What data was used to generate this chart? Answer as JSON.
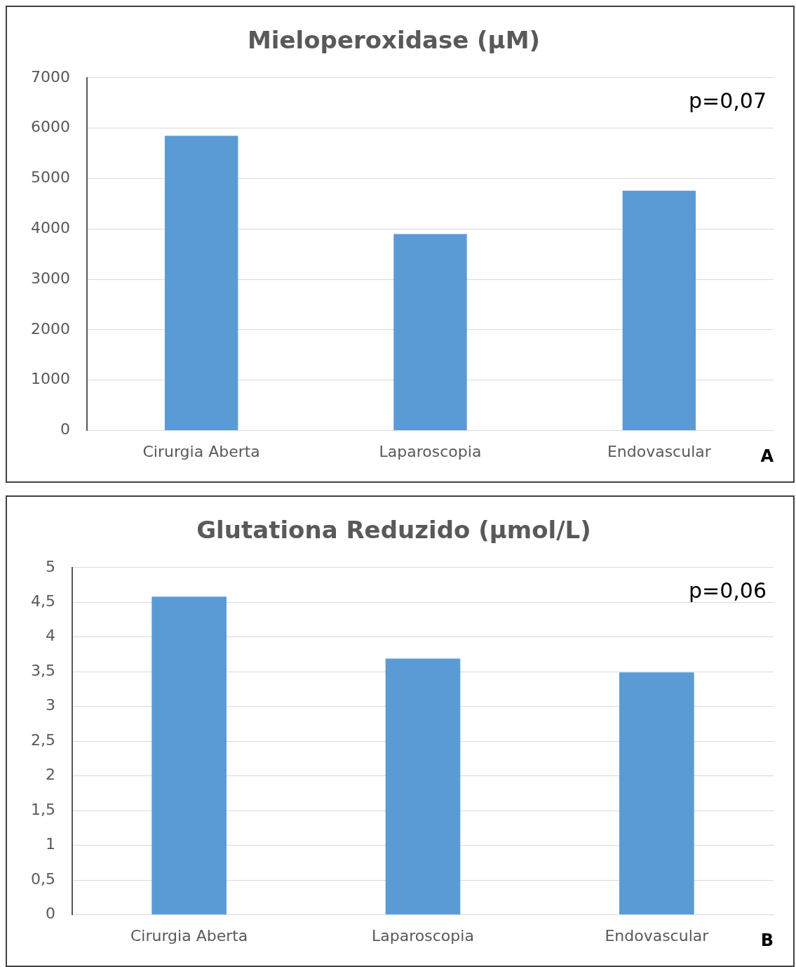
{
  "chart_data": [
    {
      "type": "bar",
      "title": "Mieloperoxidase (µM)",
      "categories": [
        "Cirurgia Aberta",
        "Laparoscopia",
        "Endovascular"
      ],
      "values": [
        5850,
        3900,
        4760
      ],
      "color": "#5b9bd5",
      "ylim": [
        0,
        7000
      ],
      "yticks": [
        0,
        1000,
        2000,
        3000,
        4000,
        5000,
        6000,
        7000
      ],
      "grid": "y",
      "legend": false,
      "annotations": [
        "p=0,07",
        "A"
      ]
    },
    {
      "type": "bar",
      "title": "Glutationa Reduzido (µmol/L)",
      "categories": [
        "Cirurgia Aberta",
        "Laparoscopia",
        "Endovascular"
      ],
      "values": [
        4.58,
        3.69,
        3.49
      ],
      "color": "#5b9bd5",
      "ylim": [
        0,
        5
      ],
      "yticks": [
        0,
        {
          "value": 0.5,
          "label": "0,5"
        },
        1,
        {
          "value": 1.5,
          "label": "1,5"
        },
        2,
        {
          "value": 2.5,
          "label": "2,5"
        },
        3,
        {
          "value": 3.5,
          "label": "3,5"
        },
        4,
        {
          "value": 4.5,
          "label": "4,5"
        },
        5
      ],
      "grid": "y",
      "legend": false,
      "annotations": [
        "p=0,06",
        "B"
      ]
    }
  ]
}
